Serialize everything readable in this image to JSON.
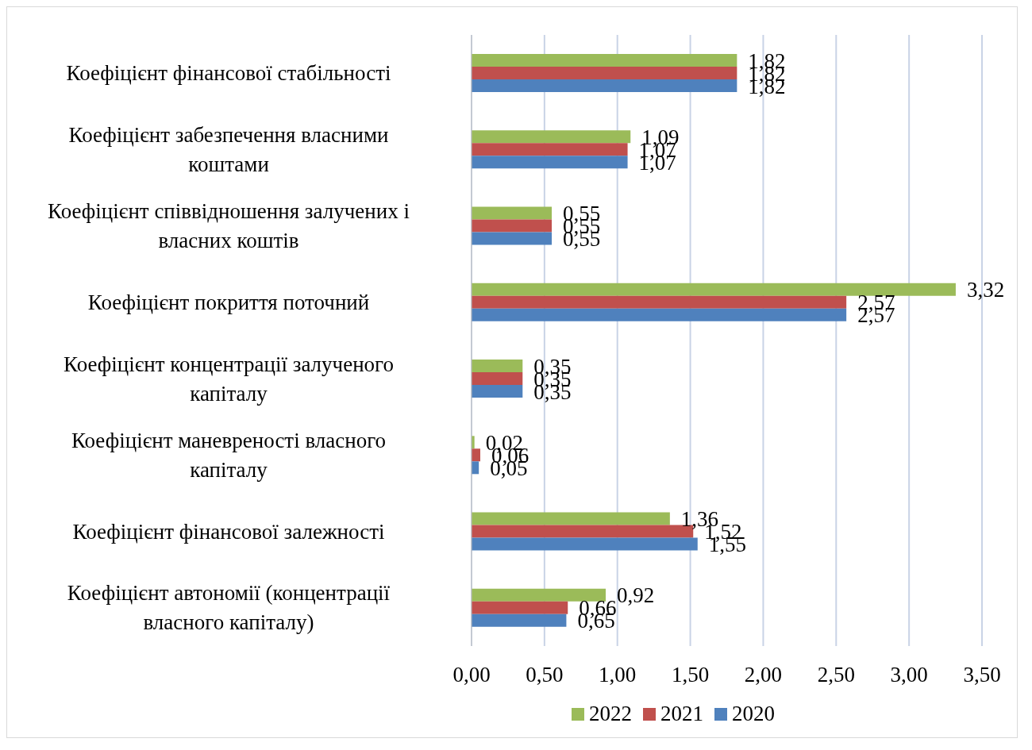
{
  "chart_data": {
    "type": "bar",
    "orientation": "horizontal",
    "categories": [
      "Коефіцієнт фінансової стабільності",
      "Коефіцієнт забезпечення власними коштами",
      "Коефіцієнт співвідношення залучених і власних коштів",
      "Коефіцієнт покриття поточний",
      "Коефіцієнт концентрації залученого капіталу",
      "Коефіцієнт маневреності власного капіталу",
      "Коефіцієнт фінансової залежності",
      "Коефіцієнт автономії (концентрації власного капіталу)"
    ],
    "series": [
      {
        "name": "2022",
        "color": "#9bbb59",
        "values": [
          1.82,
          1.09,
          0.55,
          3.32,
          0.35,
          0.02,
          1.36,
          0.92
        ],
        "value_labels": [
          "1,82",
          "1,09",
          "0,55",
          "3,32",
          "0,35",
          "0,02",
          "1,36",
          "0,92"
        ]
      },
      {
        "name": "2021",
        "color": "#c0504d",
        "values": [
          1.82,
          1.07,
          0.55,
          2.57,
          0.35,
          0.06,
          1.52,
          0.66
        ],
        "value_labels": [
          "1,82",
          "1,07",
          "0,55",
          "2,57",
          "0,35",
          "0,06",
          "1,52",
          "0,66"
        ]
      },
      {
        "name": "2020",
        "color": "#4f81bd",
        "values": [
          1.82,
          1.07,
          0.55,
          2.57,
          0.35,
          0.05,
          1.55,
          0.65
        ],
        "value_labels": [
          "1,82",
          "1,07",
          "0,55",
          "2,57",
          "0,35",
          "0,05",
          "1,55",
          "0,65"
        ]
      }
    ],
    "xlim": [
      0,
      3.5
    ],
    "xticks": [
      {
        "value": 0,
        "label": "0,00"
      },
      {
        "value": 0.5,
        "label": "0,50"
      },
      {
        "value": 1,
        "label": "1,00"
      },
      {
        "value": 1.5,
        "label": "1,50"
      },
      {
        "value": 2,
        "label": "2,00"
      },
      {
        "value": 2.5,
        "label": "2,50"
      },
      {
        "value": 3,
        "label": "3,00"
      },
      {
        "value": 3.5,
        "label": "3,50"
      }
    ],
    "grid": "x",
    "legend": "bottom"
  }
}
